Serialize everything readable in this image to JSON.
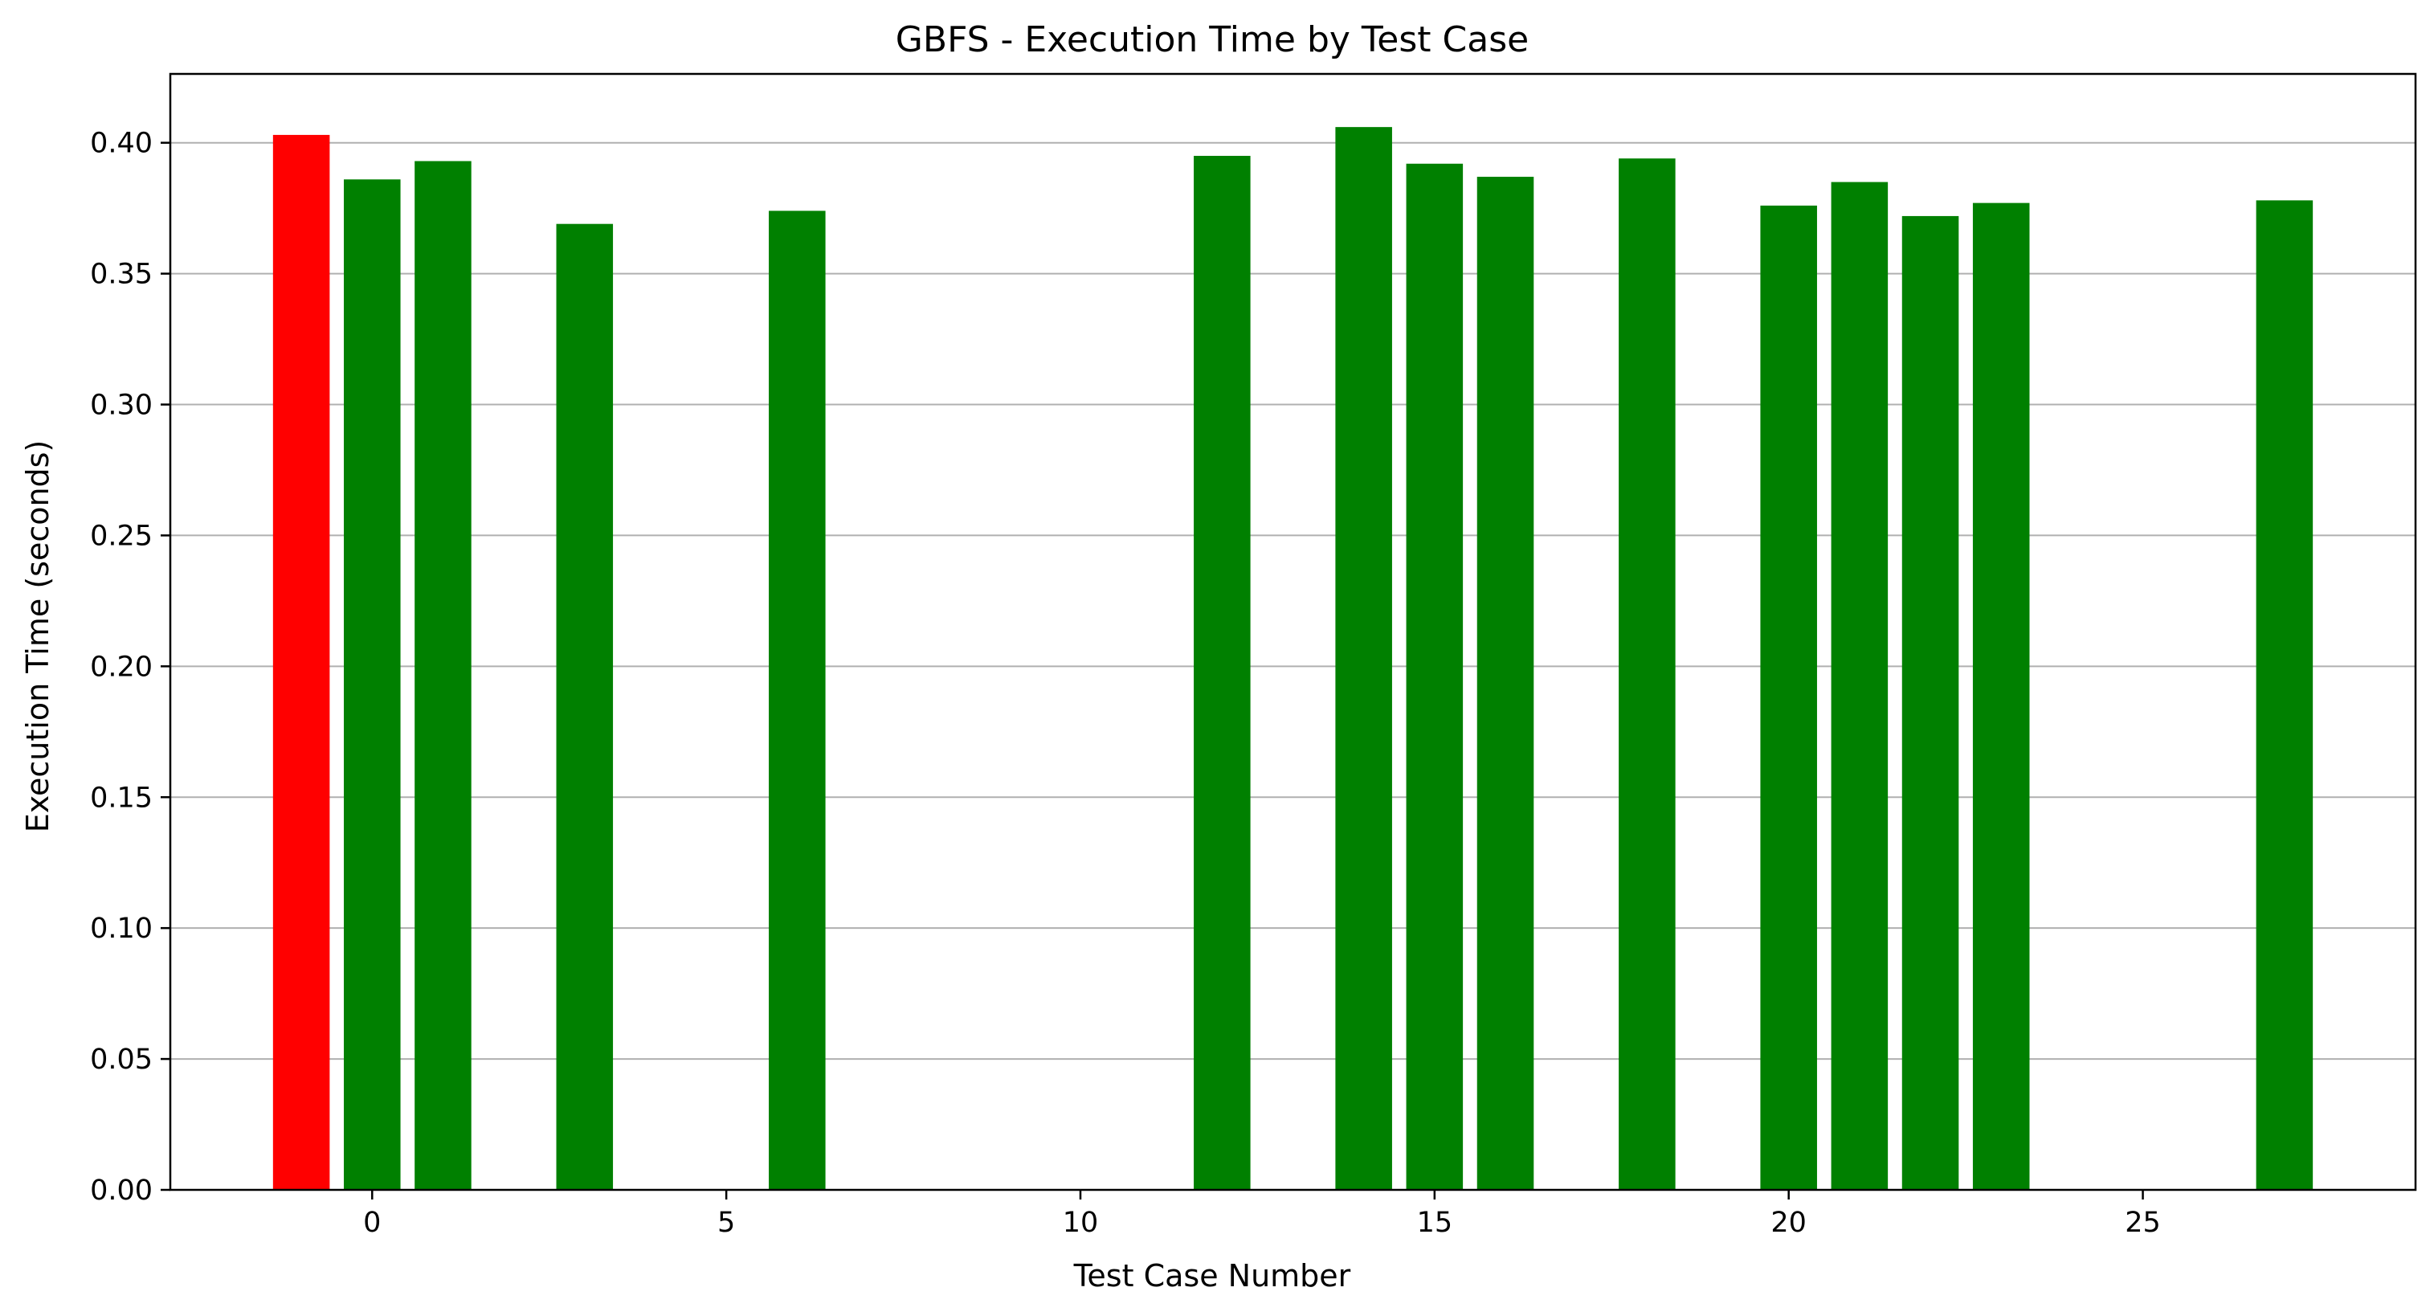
{
  "chart_data": {
    "type": "bar",
    "title": "GBFS - Execution Time by Test Case",
    "xlabel": "Test Case Number",
    "ylabel": "Execution Time (seconds)",
    "xlim": [
      -2.85,
      28.85
    ],
    "ylim": [
      0,
      0.4263
    ],
    "xticks": [
      0,
      5,
      10,
      15,
      20,
      25
    ],
    "yticks": [
      0.0,
      0.05,
      0.1,
      0.15,
      0.2,
      0.25,
      0.3,
      0.35,
      0.4
    ],
    "ytick_labels": [
      "0.00",
      "0.05",
      "0.10",
      "0.15",
      "0.20",
      "0.25",
      "0.30",
      "0.35",
      "0.40"
    ],
    "grid": "y",
    "bar_width": 0.8,
    "colors": {
      "success": "#008000",
      "failure": "#ff0000",
      "grid": "#b0b0b0",
      "axis": "#000000"
    },
    "bars": [
      {
        "x": -1,
        "value": 0.403,
        "color": "#ff0000"
      },
      {
        "x": 0,
        "value": 0.386,
        "color": "#008000"
      },
      {
        "x": 1,
        "value": 0.393,
        "color": "#008000"
      },
      {
        "x": 3,
        "value": 0.369,
        "color": "#008000"
      },
      {
        "x": 6,
        "value": 0.374,
        "color": "#008000"
      },
      {
        "x": 12,
        "value": 0.395,
        "color": "#008000"
      },
      {
        "x": 14,
        "value": 0.406,
        "color": "#008000"
      },
      {
        "x": 15,
        "value": 0.392,
        "color": "#008000"
      },
      {
        "x": 16,
        "value": 0.387,
        "color": "#008000"
      },
      {
        "x": 18,
        "value": 0.394,
        "color": "#008000"
      },
      {
        "x": 20,
        "value": 0.376,
        "color": "#008000"
      },
      {
        "x": 21,
        "value": 0.385,
        "color": "#008000"
      },
      {
        "x": 22,
        "value": 0.372,
        "color": "#008000"
      },
      {
        "x": 23,
        "value": 0.377,
        "color": "#008000"
      },
      {
        "x": 27,
        "value": 0.378,
        "color": "#008000"
      }
    ]
  }
}
